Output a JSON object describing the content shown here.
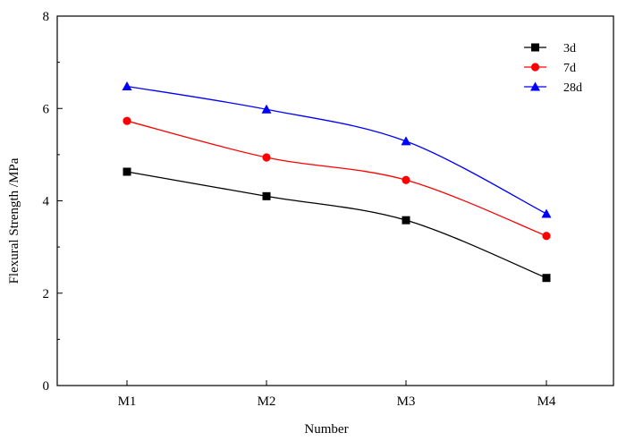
{
  "chart_data": {
    "type": "line",
    "categories": [
      "M1",
      "M2",
      "M3",
      "M4"
    ],
    "series": [
      {
        "name": "3d",
        "values": [
          4.63,
          4.1,
          3.58,
          2.33
        ],
        "color": "#000000",
        "marker": "square"
      },
      {
        "name": "7d",
        "values": [
          5.73,
          4.94,
          4.45,
          3.24
        ],
        "color": "#ff0000",
        "marker": "circle"
      },
      {
        "name": "28d",
        "values": [
          6.48,
          5.98,
          5.29,
          3.72
        ],
        "color": "#0000ff",
        "marker": "triangle"
      }
    ],
    "xlabel": "Number",
    "ylabel": "Flexural Strength /MPa",
    "ylim": [
      0,
      8
    ],
    "yticks": [
      "0",
      "2",
      "4",
      "6",
      "8"
    ],
    "grid": false,
    "legend_position": "top-right"
  }
}
